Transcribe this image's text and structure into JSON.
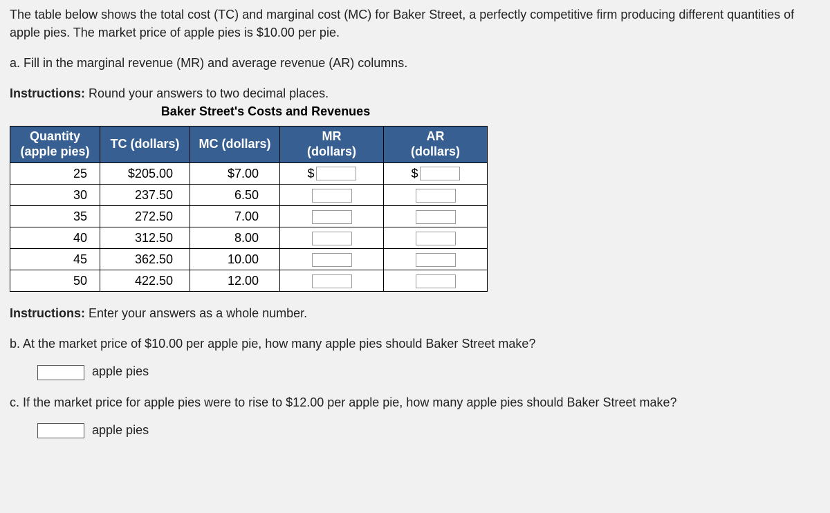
{
  "intro": "The table below shows the total cost (TC) and marginal cost (MC) for Baker Street, a perfectly competitive firm producing different quantities of apple pies. The market price of apple pies is $10.00 per pie.",
  "part_a": "a. Fill in the marginal revenue (MR) and average revenue (AR) columns.",
  "instructions1_label": "Instructions:",
  "instructions1_text": " Round your answers to two decimal places.",
  "table_title": "Baker Street's Costs and Revenues",
  "headers": {
    "qty_l1": "Quantity",
    "qty_l2": "(apple pies)",
    "tc": "TC (dollars)",
    "mc": "MC (dollars)",
    "mr_l1": "MR",
    "mr_l2": "(dollars)",
    "ar_l1": "AR",
    "ar_l2": "(dollars)"
  },
  "rows": [
    {
      "qty": "25",
      "tc": "$205.00",
      "mc": "$7.00",
      "dollar": true
    },
    {
      "qty": "30",
      "tc": "237.50",
      "mc": "6.50",
      "dollar": false
    },
    {
      "qty": "35",
      "tc": "272.50",
      "mc": "7.00",
      "dollar": false
    },
    {
      "qty": "40",
      "tc": "312.50",
      "mc": "8.00",
      "dollar": false
    },
    {
      "qty": "45",
      "tc": "362.50",
      "mc": "10.00",
      "dollar": false
    },
    {
      "qty": "50",
      "tc": "422.50",
      "mc": "12.00",
      "dollar": false
    }
  ],
  "dollar_sign": "$",
  "instructions2_label": "Instructions:",
  "instructions2_text": " Enter your answers as a whole number.",
  "part_b": "b. At the market price of $10.00 per apple pie, how many apple pies should Baker Street make?",
  "part_c": "c. If the market price for apple pies were to rise to $12.00 per apple pie, how many apple pies should Baker Street make?",
  "unit_label": "apple pies",
  "colors": {
    "header_bg": "#375f91",
    "header_fg": "#ffffff",
    "page_bg": "#f1f1f1",
    "border": "#000000"
  }
}
